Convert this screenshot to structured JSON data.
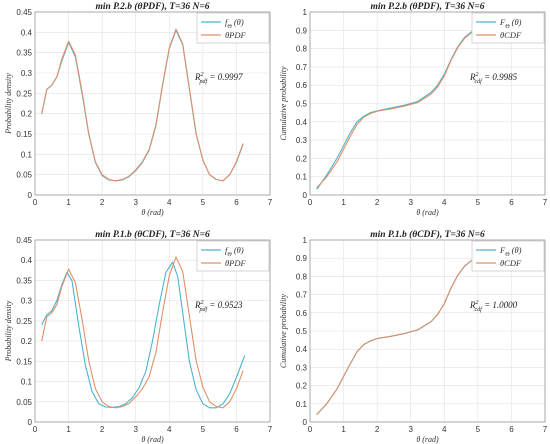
{
  "colors": {
    "model": "#4db3cf",
    "empirical": "#e0906a",
    "grid": "#e2e2e2",
    "axis": "#999999"
  },
  "chart_data": [
    {
      "type": "line",
      "title": "min P.2.b (θPDF), T=36 N=6",
      "xlabel": "θ (rad)",
      "ylabel": "Probability density",
      "xlim": [
        0,
        7
      ],
      "ylim": [
        0,
        0.45
      ],
      "xticks": [
        "0",
        "1",
        "2",
        "3",
        "4",
        "5",
        "6",
        "7"
      ],
      "yticks": [
        "0",
        "0.05",
        "0.1",
        "0.15",
        "0.2",
        "0.25",
        "0.3",
        "0.35",
        "0.4",
        "0.45"
      ],
      "grid": true,
      "legend": "top-right",
      "annotation": {
        "main": "R",
        "sup": "2",
        "sub": "pdf",
        "rest": " = 0.9997"
      },
      "series": [
        {
          "name_main": "f",
          "name_sub": "Θ",
          "name_rest": " (θ)",
          "color": "#4db3cf",
          "x": [
            0.2,
            0.35,
            0.5,
            0.65,
            0.8,
            1.0,
            1.2,
            1.4,
            1.6,
            1.8,
            2.0,
            2.2,
            2.4,
            2.6,
            2.8,
            3.0,
            3.2,
            3.4,
            3.6,
            3.8,
            4.0,
            4.2,
            4.4,
            4.6,
            4.8,
            5.0,
            5.2,
            5.4,
            5.6,
            5.8,
            6.0,
            6.2
          ],
          "y": [
            0.2,
            0.26,
            0.27,
            0.29,
            0.33,
            0.375,
            0.34,
            0.25,
            0.15,
            0.08,
            0.048,
            0.037,
            0.035,
            0.037,
            0.045,
            0.06,
            0.08,
            0.11,
            0.17,
            0.27,
            0.36,
            0.405,
            0.37,
            0.26,
            0.15,
            0.085,
            0.05,
            0.038,
            0.035,
            0.05,
            0.08,
            0.125
          ]
        },
        {
          "name": "θPDF",
          "color": "#e0906a",
          "x": [
            0.2,
            0.35,
            0.5,
            0.65,
            0.8,
            1.0,
            1.2,
            1.4,
            1.6,
            1.8,
            2.0,
            2.2,
            2.4,
            2.6,
            2.8,
            3.0,
            3.2,
            3.4,
            3.6,
            3.8,
            4.0,
            4.2,
            4.4,
            4.6,
            4.8,
            5.0,
            5.2,
            5.4,
            5.6,
            5.8,
            6.0,
            6.2
          ],
          "y": [
            0.2,
            0.26,
            0.27,
            0.29,
            0.335,
            0.378,
            0.345,
            0.255,
            0.152,
            0.082,
            0.05,
            0.038,
            0.035,
            0.038,
            0.046,
            0.062,
            0.082,
            0.112,
            0.172,
            0.272,
            0.362,
            0.408,
            0.372,
            0.262,
            0.152,
            0.086,
            0.05,
            0.038,
            0.035,
            0.05,
            0.082,
            0.127
          ]
        }
      ]
    },
    {
      "type": "line",
      "title": "min P.2.b (θPDF), T=36 N=6",
      "xlabel": "θ (rad)",
      "ylabel": "Cumulative probability",
      "xlim": [
        0,
        7
      ],
      "ylim": [
        0,
        1
      ],
      "xticks": [
        "0",
        "1",
        "2",
        "3",
        "4",
        "5",
        "6",
        "7"
      ],
      "yticks": [
        "0",
        "0.1",
        "0.2",
        "0.3",
        "0.4",
        "0.5",
        "0.6",
        "0.7",
        "0.8",
        "0.9",
        "1"
      ],
      "grid": true,
      "legend": "top-right",
      "annotation": {
        "main": "R",
        "sup": "2",
        "sub": "cdf",
        "rest": " = 0.9985"
      },
      "series": [
        {
          "name_main": "F",
          "name_sub": "Θ",
          "name_rest": " (θ)",
          "color": "#4db3cf",
          "x": [
            0.2,
            0.5,
            0.8,
            1.0,
            1.2,
            1.4,
            1.6,
            1.8,
            2.0,
            2.4,
            2.8,
            3.2,
            3.6,
            3.8,
            4.0,
            4.2,
            4.4,
            4.6,
            4.8,
            5.0,
            5.4,
            5.8,
            6.2
          ],
          "y": [
            0.03,
            0.11,
            0.2,
            0.27,
            0.34,
            0.4,
            0.43,
            0.45,
            0.46,
            0.475,
            0.49,
            0.51,
            0.56,
            0.6,
            0.66,
            0.74,
            0.81,
            0.86,
            0.89,
            0.915,
            0.94,
            0.96,
            0.99
          ]
        },
        {
          "name": "θCDF",
          "color": "#e0906a",
          "x": [
            0.2,
            0.5,
            0.8,
            1.0,
            1.2,
            1.4,
            1.6,
            1.8,
            2.0,
            2.4,
            2.8,
            3.2,
            3.6,
            3.8,
            4.0,
            4.2,
            4.4,
            4.6,
            4.8,
            5.0,
            5.4,
            5.8,
            6.2
          ],
          "y": [
            0.04,
            0.1,
            0.18,
            0.25,
            0.32,
            0.385,
            0.425,
            0.445,
            0.458,
            0.47,
            0.485,
            0.505,
            0.55,
            0.59,
            0.65,
            0.735,
            0.805,
            0.855,
            0.885,
            0.91,
            0.935,
            0.955,
            0.99
          ]
        }
      ]
    },
    {
      "type": "line",
      "title": "min P.1.b (θCDF), T=36 N=6",
      "xlabel": "θ (rad)",
      "ylabel": "Probability density",
      "xlim": [
        0,
        7
      ],
      "ylim": [
        0,
        0.45
      ],
      "xticks": [
        "0",
        "1",
        "2",
        "3",
        "4",
        "5",
        "6",
        "7"
      ],
      "yticks": [
        "0",
        "0.05",
        "0.1",
        "0.15",
        "0.2",
        "0.25",
        "0.3",
        "0.35",
        "0.4",
        "0.45"
      ],
      "grid": true,
      "legend": "top-right",
      "annotation": {
        "main": "R",
        "sup": "2",
        "sub": "pdf",
        "rest": " = 0.9523"
      },
      "series": [
        {
          "name_main": "f",
          "name_sub": "Θ",
          "name_rest": " (θ)",
          "color": "#4db3cf",
          "x": [
            0.2,
            0.35,
            0.5,
            0.65,
            0.8,
            0.95,
            1.1,
            1.3,
            1.5,
            1.7,
            1.9,
            2.1,
            2.3,
            2.5,
            2.7,
            2.9,
            3.1,
            3.3,
            3.5,
            3.7,
            3.9,
            4.1,
            4.25,
            4.4,
            4.6,
            4.8,
            5.0,
            5.2,
            5.4,
            5.6,
            5.8,
            6.0,
            6.25
          ],
          "y": [
            0.24,
            0.265,
            0.275,
            0.3,
            0.34,
            0.37,
            0.35,
            0.24,
            0.14,
            0.075,
            0.045,
            0.037,
            0.036,
            0.038,
            0.045,
            0.06,
            0.085,
            0.125,
            0.2,
            0.29,
            0.37,
            0.395,
            0.36,
            0.27,
            0.15,
            0.08,
            0.045,
            0.035,
            0.035,
            0.045,
            0.07,
            0.11,
            0.165
          ]
        },
        {
          "name": "θPDF",
          "color": "#e0906a",
          "x": [
            0.2,
            0.35,
            0.5,
            0.65,
            0.8,
            1.0,
            1.2,
            1.4,
            1.6,
            1.8,
            2.0,
            2.2,
            2.4,
            2.6,
            2.8,
            3.0,
            3.2,
            3.4,
            3.6,
            3.8,
            4.0,
            4.2,
            4.4,
            4.6,
            4.8,
            5.0,
            5.2,
            5.4,
            5.6,
            5.8,
            6.0,
            6.2
          ],
          "y": [
            0.2,
            0.26,
            0.27,
            0.29,
            0.335,
            0.378,
            0.345,
            0.255,
            0.152,
            0.082,
            0.05,
            0.038,
            0.035,
            0.038,
            0.046,
            0.062,
            0.082,
            0.112,
            0.172,
            0.272,
            0.362,
            0.408,
            0.372,
            0.262,
            0.152,
            0.086,
            0.05,
            0.038,
            0.035,
            0.05,
            0.082,
            0.127
          ]
        }
      ]
    },
    {
      "type": "line",
      "title": "min P.1.b (θCDF), T=36 N=6",
      "xlabel": "θ (rad)",
      "ylabel": "Cumulative probability",
      "xlim": [
        0,
        7
      ],
      "ylim": [
        0,
        1
      ],
      "xticks": [
        "0",
        "1",
        "2",
        "3",
        "4",
        "5",
        "6",
        "7"
      ],
      "yticks": [
        "0",
        "0.1",
        "0.2",
        "0.3",
        "0.4",
        "0.5",
        "0.6",
        "0.7",
        "0.8",
        "0.9",
        "1"
      ],
      "grid": true,
      "legend": "top-right",
      "annotation": {
        "main": "R",
        "sup": "2",
        "sub": "cdf",
        "rest": " = 1.0000"
      },
      "series": [
        {
          "name_main": "F",
          "name_sub": "Θ",
          "name_rest": " (θ)",
          "color": "#4db3cf",
          "x": [
            0.2,
            0.5,
            0.8,
            1.0,
            1.2,
            1.4,
            1.6,
            1.8,
            2.0,
            2.4,
            2.8,
            3.2,
            3.6,
            3.8,
            4.0,
            4.2,
            4.4,
            4.6,
            4.8,
            5.0,
            5.4,
            5.8,
            6.2
          ],
          "y": [
            0.04,
            0.1,
            0.18,
            0.25,
            0.32,
            0.385,
            0.425,
            0.445,
            0.458,
            0.47,
            0.485,
            0.505,
            0.55,
            0.59,
            0.65,
            0.735,
            0.805,
            0.855,
            0.885,
            0.91,
            0.935,
            0.955,
            0.99
          ]
        },
        {
          "name": "θCDF",
          "color": "#e0906a",
          "x": [
            0.2,
            0.5,
            0.8,
            1.0,
            1.2,
            1.4,
            1.6,
            1.8,
            2.0,
            2.4,
            2.8,
            3.2,
            3.6,
            3.8,
            4.0,
            4.2,
            4.4,
            4.6,
            4.8,
            5.0,
            5.4,
            5.8,
            6.2
          ],
          "y": [
            0.041,
            0.101,
            0.181,
            0.251,
            0.321,
            0.386,
            0.426,
            0.446,
            0.459,
            0.471,
            0.486,
            0.506,
            0.551,
            0.591,
            0.651,
            0.736,
            0.806,
            0.856,
            0.886,
            0.911,
            0.936,
            0.956,
            0.991
          ]
        }
      ]
    }
  ]
}
